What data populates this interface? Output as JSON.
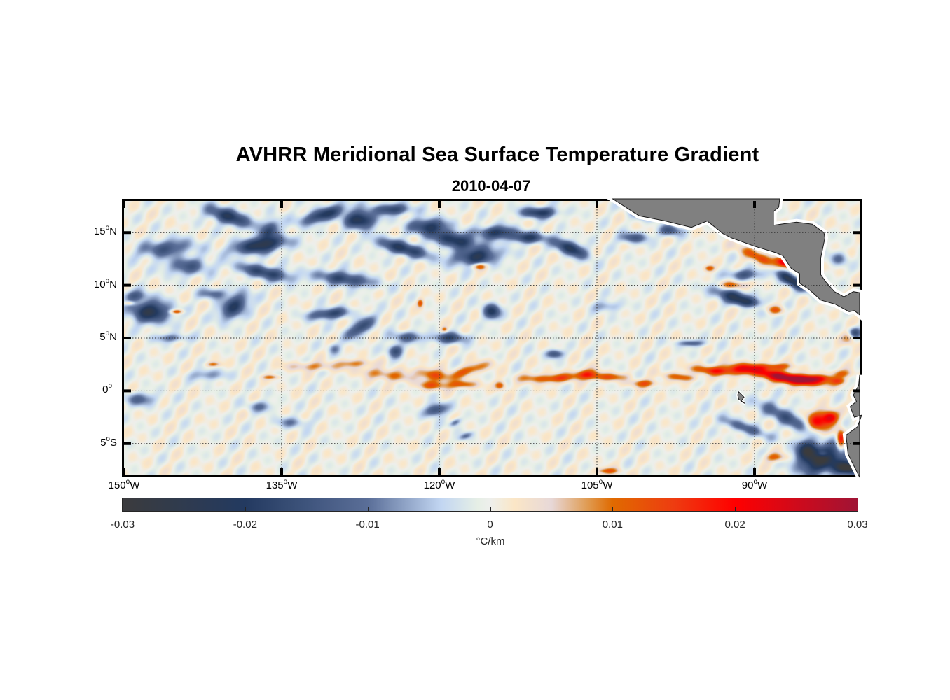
{
  "chart_data": {
    "type": "heatmap",
    "title": "AVHRR Meridional Sea Surface Temperature Gradient",
    "subtitle": "2010-04-07",
    "projection": "equirectangular",
    "lon_range": [
      -150,
      -80
    ],
    "lat_range": [
      -8,
      18
    ],
    "grid": true,
    "x_ticks": [
      {
        "value": -150,
        "num": "150",
        "deg": "o",
        "hem": "W"
      },
      {
        "value": -135,
        "num": "135",
        "deg": "o",
        "hem": "W"
      },
      {
        "value": -120,
        "num": "120",
        "deg": "o",
        "hem": "W"
      },
      {
        "value": -105,
        "num": "105",
        "deg": "o",
        "hem": "W"
      },
      {
        "value": -90,
        "num": "90",
        "deg": "o",
        "hem": "W"
      }
    ],
    "y_ticks": [
      {
        "value": 15,
        "num": "15",
        "deg": "o",
        "hem": "N"
      },
      {
        "value": 10,
        "num": "10",
        "deg": "o",
        "hem": "N"
      },
      {
        "value": 5,
        "num": "5",
        "deg": "o",
        "hem": "N"
      },
      {
        "value": 0,
        "num": "0",
        "deg": "o",
        "hem": ""
      },
      {
        "value": -5,
        "num": "5",
        "deg": "o",
        "hem": "S"
      }
    ],
    "colorbar": {
      "clim": [
        -0.03,
        0.03
      ],
      "ticks": [
        {
          "value": -0.03,
          "label": "-0.03"
        },
        {
          "value": -0.02,
          "label": "-0.02"
        },
        {
          "value": -0.01,
          "label": "-0.01"
        },
        {
          "value": 0,
          "label": "0"
        },
        {
          "value": 0.01,
          "label": "0.01"
        },
        {
          "value": 0.02,
          "label": "0.02"
        },
        {
          "value": 0.03,
          "label": "0.03"
        }
      ],
      "unit": "°C/km",
      "location": "southoutside"
    },
    "colormap": [
      {
        "v": -0.03,
        "color": "#3b3b3d"
      },
      {
        "v": -0.02,
        "color": "#233a60"
      },
      {
        "v": -0.01,
        "color": "#5a6e98"
      },
      {
        "v": -0.004,
        "color": "#c2d6f2"
      },
      {
        "v": -0.001,
        "color": "#e6efe6"
      },
      {
        "v": 0.0,
        "color": "#eeefec"
      },
      {
        "v": 0.002,
        "color": "#fbe6c6"
      },
      {
        "v": 0.005,
        "color": "#e7d8d8"
      },
      {
        "v": 0.008,
        "color": "#e09a50"
      },
      {
        "v": 0.01,
        "color": "#e06a00"
      },
      {
        "v": 0.015,
        "color": "#ee3c10"
      },
      {
        "v": 0.02,
        "color": "#ff0000"
      },
      {
        "v": 0.03,
        "color": "#a01435"
      }
    ],
    "land_color": "#808080"
  }
}
